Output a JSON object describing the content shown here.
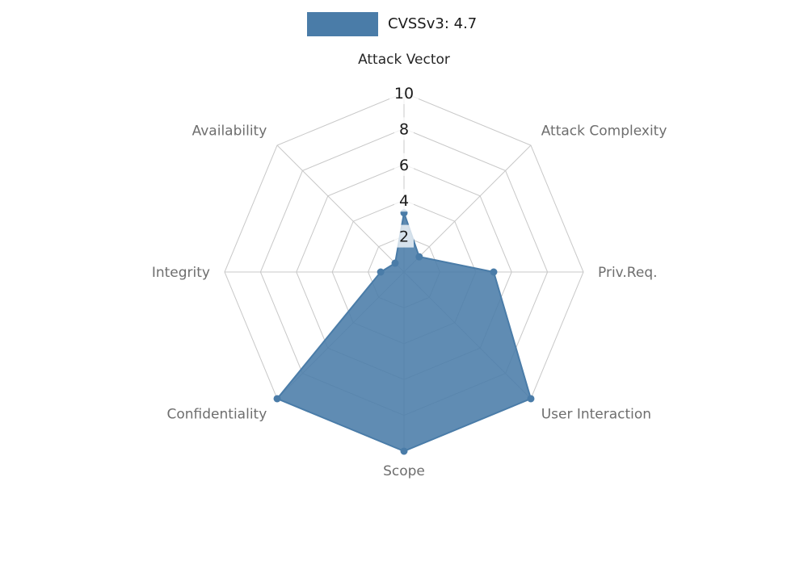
{
  "legend": {
    "label": "CVSSv3: 4.7",
    "swatch_color": "#4a7ca8"
  },
  "chart_data": {
    "type": "radar",
    "title": "CVSSv3 score radar chart",
    "legend_entries": [
      "CVSSv3: 4.7"
    ],
    "categories": [
      {
        "label": "Attack Vector",
        "color": "#262626"
      },
      {
        "label": "Attack Complexity",
        "color": "#6e6e6e"
      },
      {
        "label": "Priv.Req.",
        "color": "#6e6e6e"
      },
      {
        "label": "User Interaction",
        "color": "#6e6e6e"
      },
      {
        "label": "Scope",
        "color": "#6e6e6e"
      },
      {
        "label": "Confidentiality",
        "color": "#6e6e6e"
      },
      {
        "label": "Integrity",
        "color": "#6e6e6e"
      },
      {
        "label": "Availability",
        "color": "#6e6e6e"
      }
    ],
    "values": [
      3.3,
      1.2,
      5.0,
      10,
      10,
      10,
      1.3,
      0.7
    ],
    "ticks": [
      2,
      4,
      6,
      8,
      10
    ],
    "max": 10,
    "axis_range": [
      0,
      10
    ],
    "grid": true,
    "legend_position": "top-center",
    "center": [
      500,
      337
    ],
    "radius_for_max": 222,
    "label_radius": 240,
    "grid_color": "#c8c8c8",
    "series_color": "#4a7ca8",
    "fill_opacity": 0.88,
    "tick_text_color": "#1a1a1a",
    "tick_box_color": "#ffffff"
  }
}
